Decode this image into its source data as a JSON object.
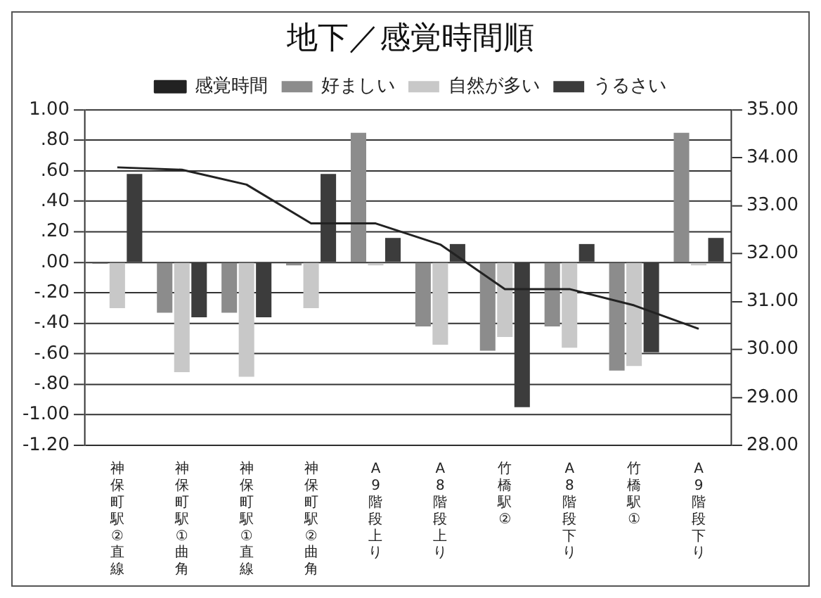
{
  "chart_data": {
    "type": "bar",
    "title": "地下／感覚時間順",
    "categories": [
      "神保町駅②直線",
      "神保町駅①曲角",
      "神保町駅①直線",
      "神保町駅②曲角",
      "A9階段上り",
      "A8階段上り",
      "竹橋駅②",
      "A8階段下り",
      "竹橋駅①",
      "A9階段下り"
    ],
    "series": [
      {
        "name": "好ましい",
        "color": "#8c8c8c",
        "values": [
          -0.01,
          -0.33,
          -0.33,
          -0.02,
          0.85,
          -0.42,
          -0.58,
          -0.42,
          -0.71,
          0.85
        ]
      },
      {
        "name": "自然が多い",
        "color": "#c8c8c8",
        "values": [
          -0.3,
          -0.72,
          -0.75,
          -0.3,
          -0.02,
          -0.54,
          -0.49,
          -0.56,
          -0.68,
          -0.02
        ]
      },
      {
        "name": "うるさい",
        "color": "#3c3c3c",
        "values": [
          0.58,
          -0.36,
          -0.36,
          0.58,
          0.16,
          0.12,
          -0.95,
          0.12,
          -0.59,
          0.16
        ]
      },
      {
        "name": "感覚時間",
        "type": "line",
        "axis": "y2",
        "color": "#222222",
        "marker": "none",
        "values": [
          33.8,
          33.75,
          33.44,
          32.63,
          32.63,
          32.19,
          31.26,
          31.26,
          30.92,
          30.43
        ]
      }
    ],
    "ylim": [
      -1.2,
      1.0
    ],
    "yticks": [
      {
        "value": 1.0,
        "label": "1.00"
      },
      {
        "value": 0.8,
        "label": ".80"
      },
      {
        "value": 0.6,
        "label": ".60"
      },
      {
        "value": 0.4,
        "label": ".40"
      },
      {
        "value": 0.2,
        "label": ".20"
      },
      {
        "value": 0,
        "label": ".00"
      },
      {
        "value": -0.2,
        "label": "-.20"
      },
      {
        "value": -0.4,
        "label": "-.40"
      },
      {
        "value": -0.6,
        "label": "-.60"
      },
      {
        "value": -0.8,
        "label": "-.80"
      },
      {
        "value": -1.0,
        "label": "-1.00"
      },
      {
        "value": -1.2,
        "label": "-1.20"
      }
    ],
    "y2lim": [
      28,
      35
    ],
    "y2ticks": [
      {
        "value": 35,
        "label": "35.00"
      },
      {
        "value": 34,
        "label": "34.00"
      },
      {
        "value": 33,
        "label": "33.00"
      },
      {
        "value": 32,
        "label": "32.00"
      },
      {
        "value": 31,
        "label": "31.00"
      },
      {
        "value": 30,
        "label": "30.00"
      },
      {
        "value": 29,
        "label": "29.00"
      },
      {
        "value": 28,
        "label": "28.00"
      }
    ],
    "grid": "y",
    "legend": "top"
  }
}
